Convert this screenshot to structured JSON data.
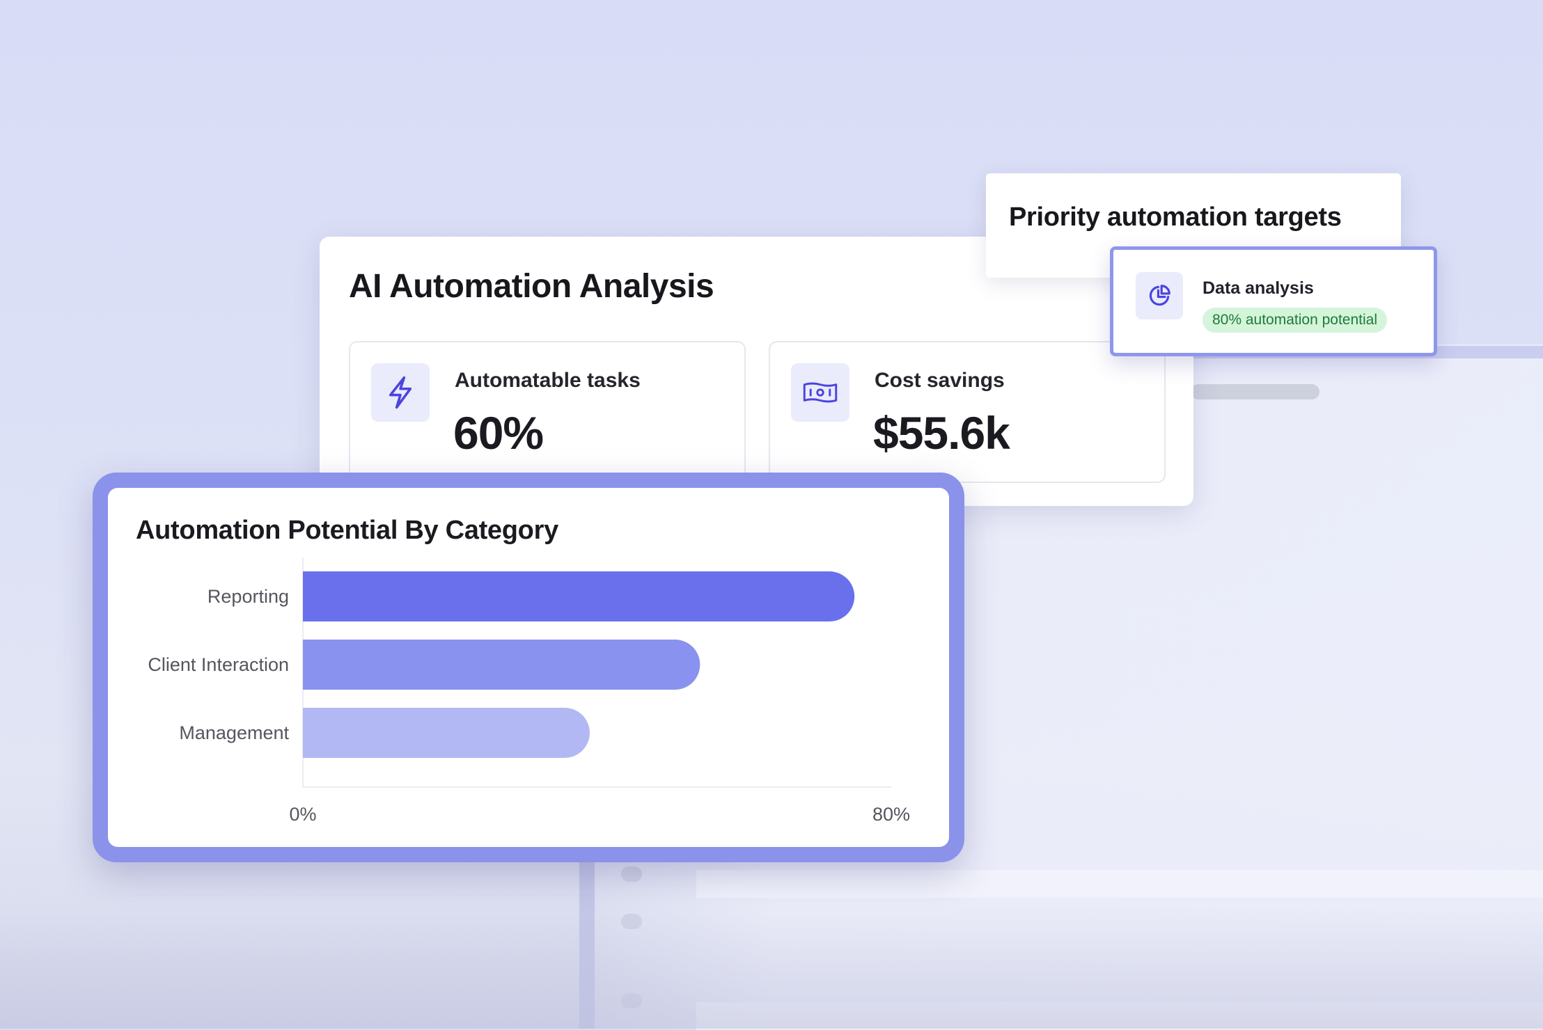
{
  "main_card": {
    "title": "AI Automation Analysis",
    "stats": [
      {
        "label": "Automatable tasks",
        "value": "60%",
        "icon": "lightning-bolt-icon"
      },
      {
        "label": "Cost savings",
        "value": "$55.6k",
        "icon": "banknote-icon"
      }
    ]
  },
  "priority": {
    "title": "Priority automation targets",
    "item": {
      "label": "Data analysis",
      "badge": "80% automation potential",
      "icon": "pie-chart-icon"
    }
  },
  "colors": {
    "accent": "#6a70ec",
    "bar_primary": "#6a70ec",
    "bar_secondary": "#8a92ef",
    "bar_tertiary": "#b1b8f3",
    "badge_bg": "#d4f5da",
    "badge_text": "#1f7a38",
    "card_border": "#8a92ea"
  },
  "chart_data": {
    "type": "bar",
    "orientation": "horizontal",
    "title": "Automation Potential By Category",
    "categories": [
      "Reporting",
      "Client Interaction",
      "Management"
    ],
    "values": [
      75,
      54,
      39
    ],
    "xlim": [
      0,
      80
    ],
    "xtick_labels": [
      "0%",
      "80%"
    ],
    "xlabel": "",
    "ylabel": "",
    "grid": false
  }
}
